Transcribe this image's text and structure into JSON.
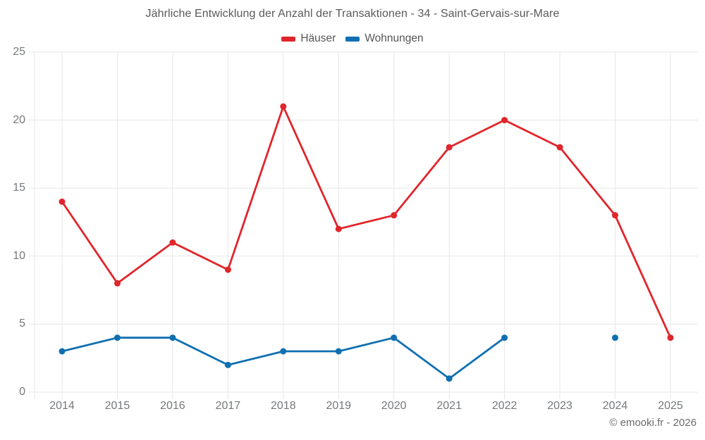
{
  "title": "Jährliche Entwicklung der Anzahl der Transaktionen - 34 - Saint-Gervais-sur-Mare",
  "footer": "© emooki.fr - 2026",
  "chart_data": {
    "type": "line",
    "title": "Jährliche Entwicklung der Anzahl der Transaktionen - 34 - Saint-Gervais-sur-Mare",
    "categories": [
      "2014",
      "2015",
      "2016",
      "2017",
      "2018",
      "2019",
      "2020",
      "2021",
      "2022",
      "2023",
      "2024",
      "2025"
    ],
    "series": [
      {
        "name": "Häuser",
        "color": "#e0252b",
        "values": [
          14,
          8,
          11,
          9,
          21,
          12,
          13,
          18,
          20,
          18,
          13,
          4
        ]
      },
      {
        "name": "Wohnungen",
        "color": "#0f6fb0",
        "values": [
          3,
          4,
          4,
          2,
          3,
          3,
          4,
          1,
          4,
          null,
          4,
          null
        ]
      }
    ],
    "xlabel": "",
    "ylabel": "",
    "ylim": [
      0,
      25
    ],
    "yticks": [
      0,
      5,
      10,
      15,
      20,
      25
    ],
    "grid": true,
    "legend_position": "top"
  },
  "colors": {
    "grid": "#e7e7e7",
    "axis_text": "#75787b",
    "title_text": "#58595b",
    "footer_text": "#6b6b6b",
    "background": "#ffffff"
  }
}
